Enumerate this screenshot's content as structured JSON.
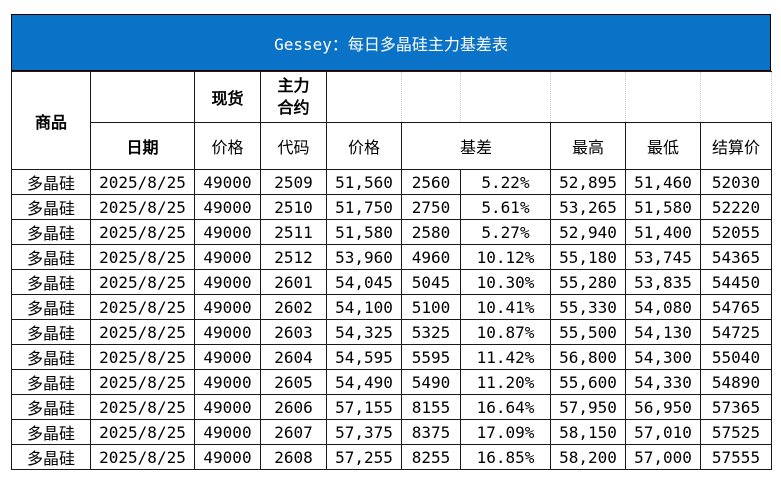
{
  "title": "Gessey：每日多晶硅主力基差表",
  "headers": {
    "product": "商品",
    "spot": "现货",
    "main_contract_line1": "主力",
    "main_contract_line2": "合约",
    "date": "日期",
    "spot_price": "价格",
    "code": "代码",
    "price": "价格",
    "basis": "基差",
    "high": "最高",
    "low": "最低",
    "settle": "结算价"
  },
  "rows": [
    {
      "product": "多晶硅",
      "date": "2025/8/25",
      "spot": "49000",
      "code": "2509",
      "price": "51,560",
      "basis": "2560",
      "pct": "5.22%",
      "high": "52,895",
      "low": "51,460",
      "settle": "52030"
    },
    {
      "product": "多晶硅",
      "date": "2025/8/25",
      "spot": "49000",
      "code": "2510",
      "price": "51,750",
      "basis": "2750",
      "pct": "5.61%",
      "high": "53,265",
      "low": "51,580",
      "settle": "52220"
    },
    {
      "product": "多晶硅",
      "date": "2025/8/25",
      "spot": "49000",
      "code": "2511",
      "price": "51,580",
      "basis": "2580",
      "pct": "5.27%",
      "high": "52,940",
      "low": "51,400",
      "settle": "52055"
    },
    {
      "product": "多晶硅",
      "date": "2025/8/25",
      "spot": "49000",
      "code": "2512",
      "price": "53,960",
      "basis": "4960",
      "pct": "10.12%",
      "high": "55,180",
      "low": "53,745",
      "settle": "54365"
    },
    {
      "product": "多晶硅",
      "date": "2025/8/25",
      "spot": "49000",
      "code": "2601",
      "price": "54,045",
      "basis": "5045",
      "pct": "10.30%",
      "high": "55,280",
      "low": "53,835",
      "settle": "54450"
    },
    {
      "product": "多晶硅",
      "date": "2025/8/25",
      "spot": "49000",
      "code": "2602",
      "price": "54,100",
      "basis": "5100",
      "pct": "10.41%",
      "high": "55,330",
      "low": "54,080",
      "settle": "54765"
    },
    {
      "product": "多晶硅",
      "date": "2025/8/25",
      "spot": "49000",
      "code": "2603",
      "price": "54,325",
      "basis": "5325",
      "pct": "10.87%",
      "high": "55,500",
      "low": "54,130",
      "settle": "54725"
    },
    {
      "product": "多晶硅",
      "date": "2025/8/25",
      "spot": "49000",
      "code": "2604",
      "price": "54,595",
      "basis": "5595",
      "pct": "11.42%",
      "high": "56,800",
      "low": "54,300",
      "settle": "55040"
    },
    {
      "product": "多晶硅",
      "date": "2025/8/25",
      "spot": "49000",
      "code": "2605",
      "price": "54,490",
      "basis": "5490",
      "pct": "11.20%",
      "high": "55,600",
      "low": "54,330",
      "settle": "54890"
    },
    {
      "product": "多晶硅",
      "date": "2025/8/25",
      "spot": "49000",
      "code": "2606",
      "price": "57,155",
      "basis": "8155",
      "pct": "16.64%",
      "high": "57,950",
      "low": "56,950",
      "settle": "57365"
    },
    {
      "product": "多晶硅",
      "date": "2025/8/25",
      "spot": "49000",
      "code": "2607",
      "price": "57,375",
      "basis": "8375",
      "pct": "17.09%",
      "high": "58,150",
      "low": "57,010",
      "settle": "57525"
    },
    {
      "product": "多晶硅",
      "date": "2025/8/25",
      "spot": "49000",
      "code": "2608",
      "price": "57,255",
      "basis": "8255",
      "pct": "16.85%",
      "high": "58,200",
      "low": "57,000",
      "settle": "57555"
    }
  ],
  "colors": {
    "title_bg": "#0a72c7",
    "title_text": "#ffffff",
    "link_blue": "#3b62d8",
    "basis_red": "#e02020"
  }
}
